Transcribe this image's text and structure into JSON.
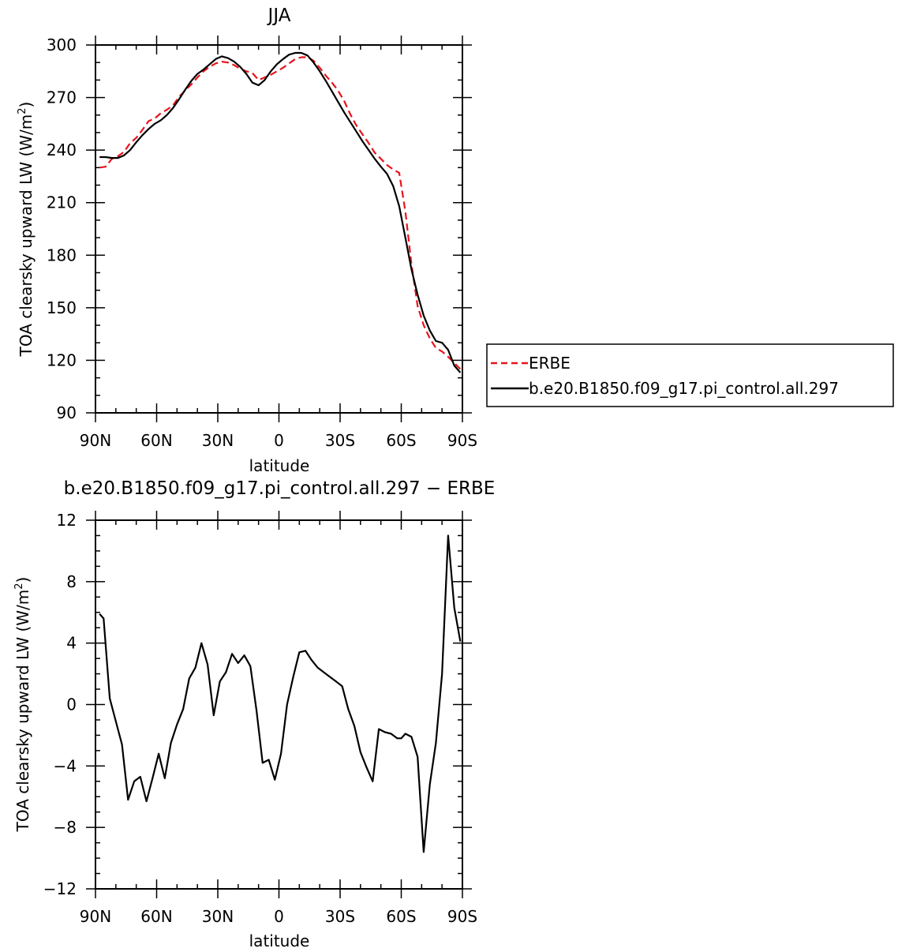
{
  "chart_data": [
    {
      "type": "line",
      "title": "JJA",
      "xlabel": "latitude",
      "ylabel": "TOA clearsky upward LW",
      "ylabel_unit_base": "W/m",
      "ylabel_unit_exp": "2",
      "xlim": [
        90,
        -90
      ],
      "ylim": [
        90,
        300
      ],
      "x_tick_values": [
        90,
        60,
        30,
        0,
        -30,
        -60,
        -90
      ],
      "x_tick_labels": [
        "90N",
        "60N",
        "30N",
        "0",
        "30S",
        "60S",
        "90S"
      ],
      "y_tick_values": [
        90,
        120,
        150,
        180,
        210,
        240,
        270,
        300
      ],
      "y_tick_labels": [
        "90",
        "120",
        "150",
        "180",
        "210",
        "240",
        "270",
        "300"
      ],
      "legend_position": "right",
      "series": [
        {
          "name": "ERBE",
          "color": "#e8141c",
          "dash": "dashed",
          "x": [
            88,
            85,
            82,
            79,
            76,
            73,
            70,
            67,
            64,
            61,
            58,
            55,
            52,
            49,
            46,
            43,
            40,
            37,
            34,
            31,
            28,
            25,
            22,
            19,
            16,
            13,
            10,
            7,
            4,
            1,
            -2,
            -5,
            -8,
            -11,
            -14,
            -17,
            -20,
            -23,
            -26,
            -29,
            -32,
            -35,
            -38,
            -41,
            -44,
            -47,
            -50,
            -53,
            -56,
            -59,
            -62,
            -65,
            -68,
            -71,
            -74,
            -77,
            -80,
            -83,
            -86,
            -89
          ],
          "y": [
            230,
            230.5,
            235,
            236.5,
            239,
            244,
            247,
            251.5,
            256.5,
            258,
            261,
            263,
            265.5,
            270.5,
            274,
            277.5,
            281.5,
            285,
            287.5,
            289.5,
            290.5,
            290,
            288.5,
            286.5,
            285,
            284,
            280,
            281.5,
            283,
            285,
            287,
            289.5,
            292,
            293,
            293,
            291,
            287,
            282.5,
            278.5,
            274,
            268,
            260.5,
            254,
            249,
            244,
            238.5,
            235,
            231.5,
            229,
            227,
            205,
            175,
            151,
            140,
            132.5,
            127,
            125,
            122,
            118.5,
            115
          ]
        },
        {
          "name": "b.e20.B1850.f09_g17.pi_control.all.297",
          "color": "#000000",
          "dash": "solid",
          "x": [
            88,
            85,
            82,
            79,
            76,
            73,
            70,
            67,
            64,
            61,
            58,
            55,
            52,
            49,
            46,
            43,
            40,
            37,
            34,
            31,
            28,
            25,
            22,
            19,
            16,
            13,
            10,
            7,
            4,
            1,
            -2,
            -5,
            -8,
            -11,
            -14,
            -17,
            -20,
            -23,
            -26,
            -29,
            -32,
            -35,
            -38,
            -41,
            -44,
            -47,
            -50,
            -53,
            -56,
            -59,
            -62,
            -65,
            -68,
            -71,
            -74,
            -77,
            -80,
            -83,
            -86,
            -89
          ],
          "y": [
            236,
            236,
            235.5,
            235.5,
            237,
            240,
            244.5,
            248.5,
            252,
            255,
            257,
            260,
            264,
            269,
            274.5,
            279.5,
            283.5,
            286,
            289,
            292,
            293.5,
            292.5,
            290.5,
            287.5,
            283.5,
            278.5,
            277,
            280,
            285,
            289,
            292,
            294.5,
            295.5,
            295.5,
            294,
            290,
            285,
            279.5,
            273.5,
            267.5,
            261.5,
            256,
            250.5,
            245,
            240,
            235,
            230.5,
            226.5,
            219.5,
            208,
            190,
            172,
            157.5,
            145.5,
            137,
            131,
            130,
            126,
            117,
            113
          ]
        }
      ]
    },
    {
      "type": "line",
      "title": "b.e20.B1850.f09_g17.pi_control.all.297 − ERBE",
      "xlabel": "latitude",
      "ylabel": "TOA clearsky upward LW",
      "ylabel_unit_base": "W/m",
      "ylabel_unit_exp": "2",
      "xlim": [
        90,
        -90
      ],
      "ylim": [
        -12,
        12
      ],
      "x_tick_values": [
        90,
        60,
        30,
        0,
        -30,
        -60,
        -90
      ],
      "x_tick_labels": [
        "90N",
        "60N",
        "30N",
        "0",
        "30S",
        "60S",
        "90S"
      ],
      "y_tick_values": [
        -12,
        -8,
        -4,
        0,
        4,
        8,
        12
      ],
      "y_tick_labels": [
        "−12",
        "−8",
        "−4",
        "0",
        "4",
        "8",
        "12"
      ],
      "series": [
        {
          "color": "#000000",
          "dash": "solid",
          "x": [
            88,
            86,
            83,
            80,
            77,
            74,
            71,
            68,
            65,
            62,
            59,
            56,
            53,
            50,
            47,
            44,
            41,
            38,
            35,
            32,
            29,
            26,
            23,
            20,
            17,
            14,
            11,
            8,
            5,
            2,
            -1,
            -4,
            -7,
            -10,
            -13,
            -16,
            -19,
            -22,
            -25,
            -28,
            -31,
            -34,
            -37,
            -40,
            -43,
            -46,
            -49,
            -52,
            -55,
            -58,
            -60,
            -62,
            -65,
            -68,
            -71,
            -74,
            -77,
            -80,
            -83,
            -86,
            -89
          ],
          "y": [
            5.9,
            5.6,
            0.4,
            -1.1,
            -2.6,
            -6.2,
            -5,
            -4.7,
            -6.3,
            -4.8,
            -3.2,
            -4.8,
            -2.5,
            -1.3,
            -0.3,
            1.7,
            2.4,
            4,
            2.6,
            -0.7,
            1.5,
            2.1,
            3.3,
            2.7,
            3.2,
            2.5,
            -0.4,
            -3.8,
            -3.6,
            -4.9,
            -3.2,
            0,
            1.8,
            3.4,
            3.5,
            2.9,
            2.4,
            2.1,
            1.8,
            1.5,
            1.2,
            -0.3,
            -1.4,
            -3.1,
            -4.1,
            -5,
            -1.6,
            -1.8,
            -1.9,
            -2.2,
            -2.2,
            -1.9,
            -2.1,
            -3.4,
            -9.6,
            -5.2,
            -2.5,
            2,
            11,
            6.3,
            4.1
          ]
        }
      ]
    }
  ]
}
